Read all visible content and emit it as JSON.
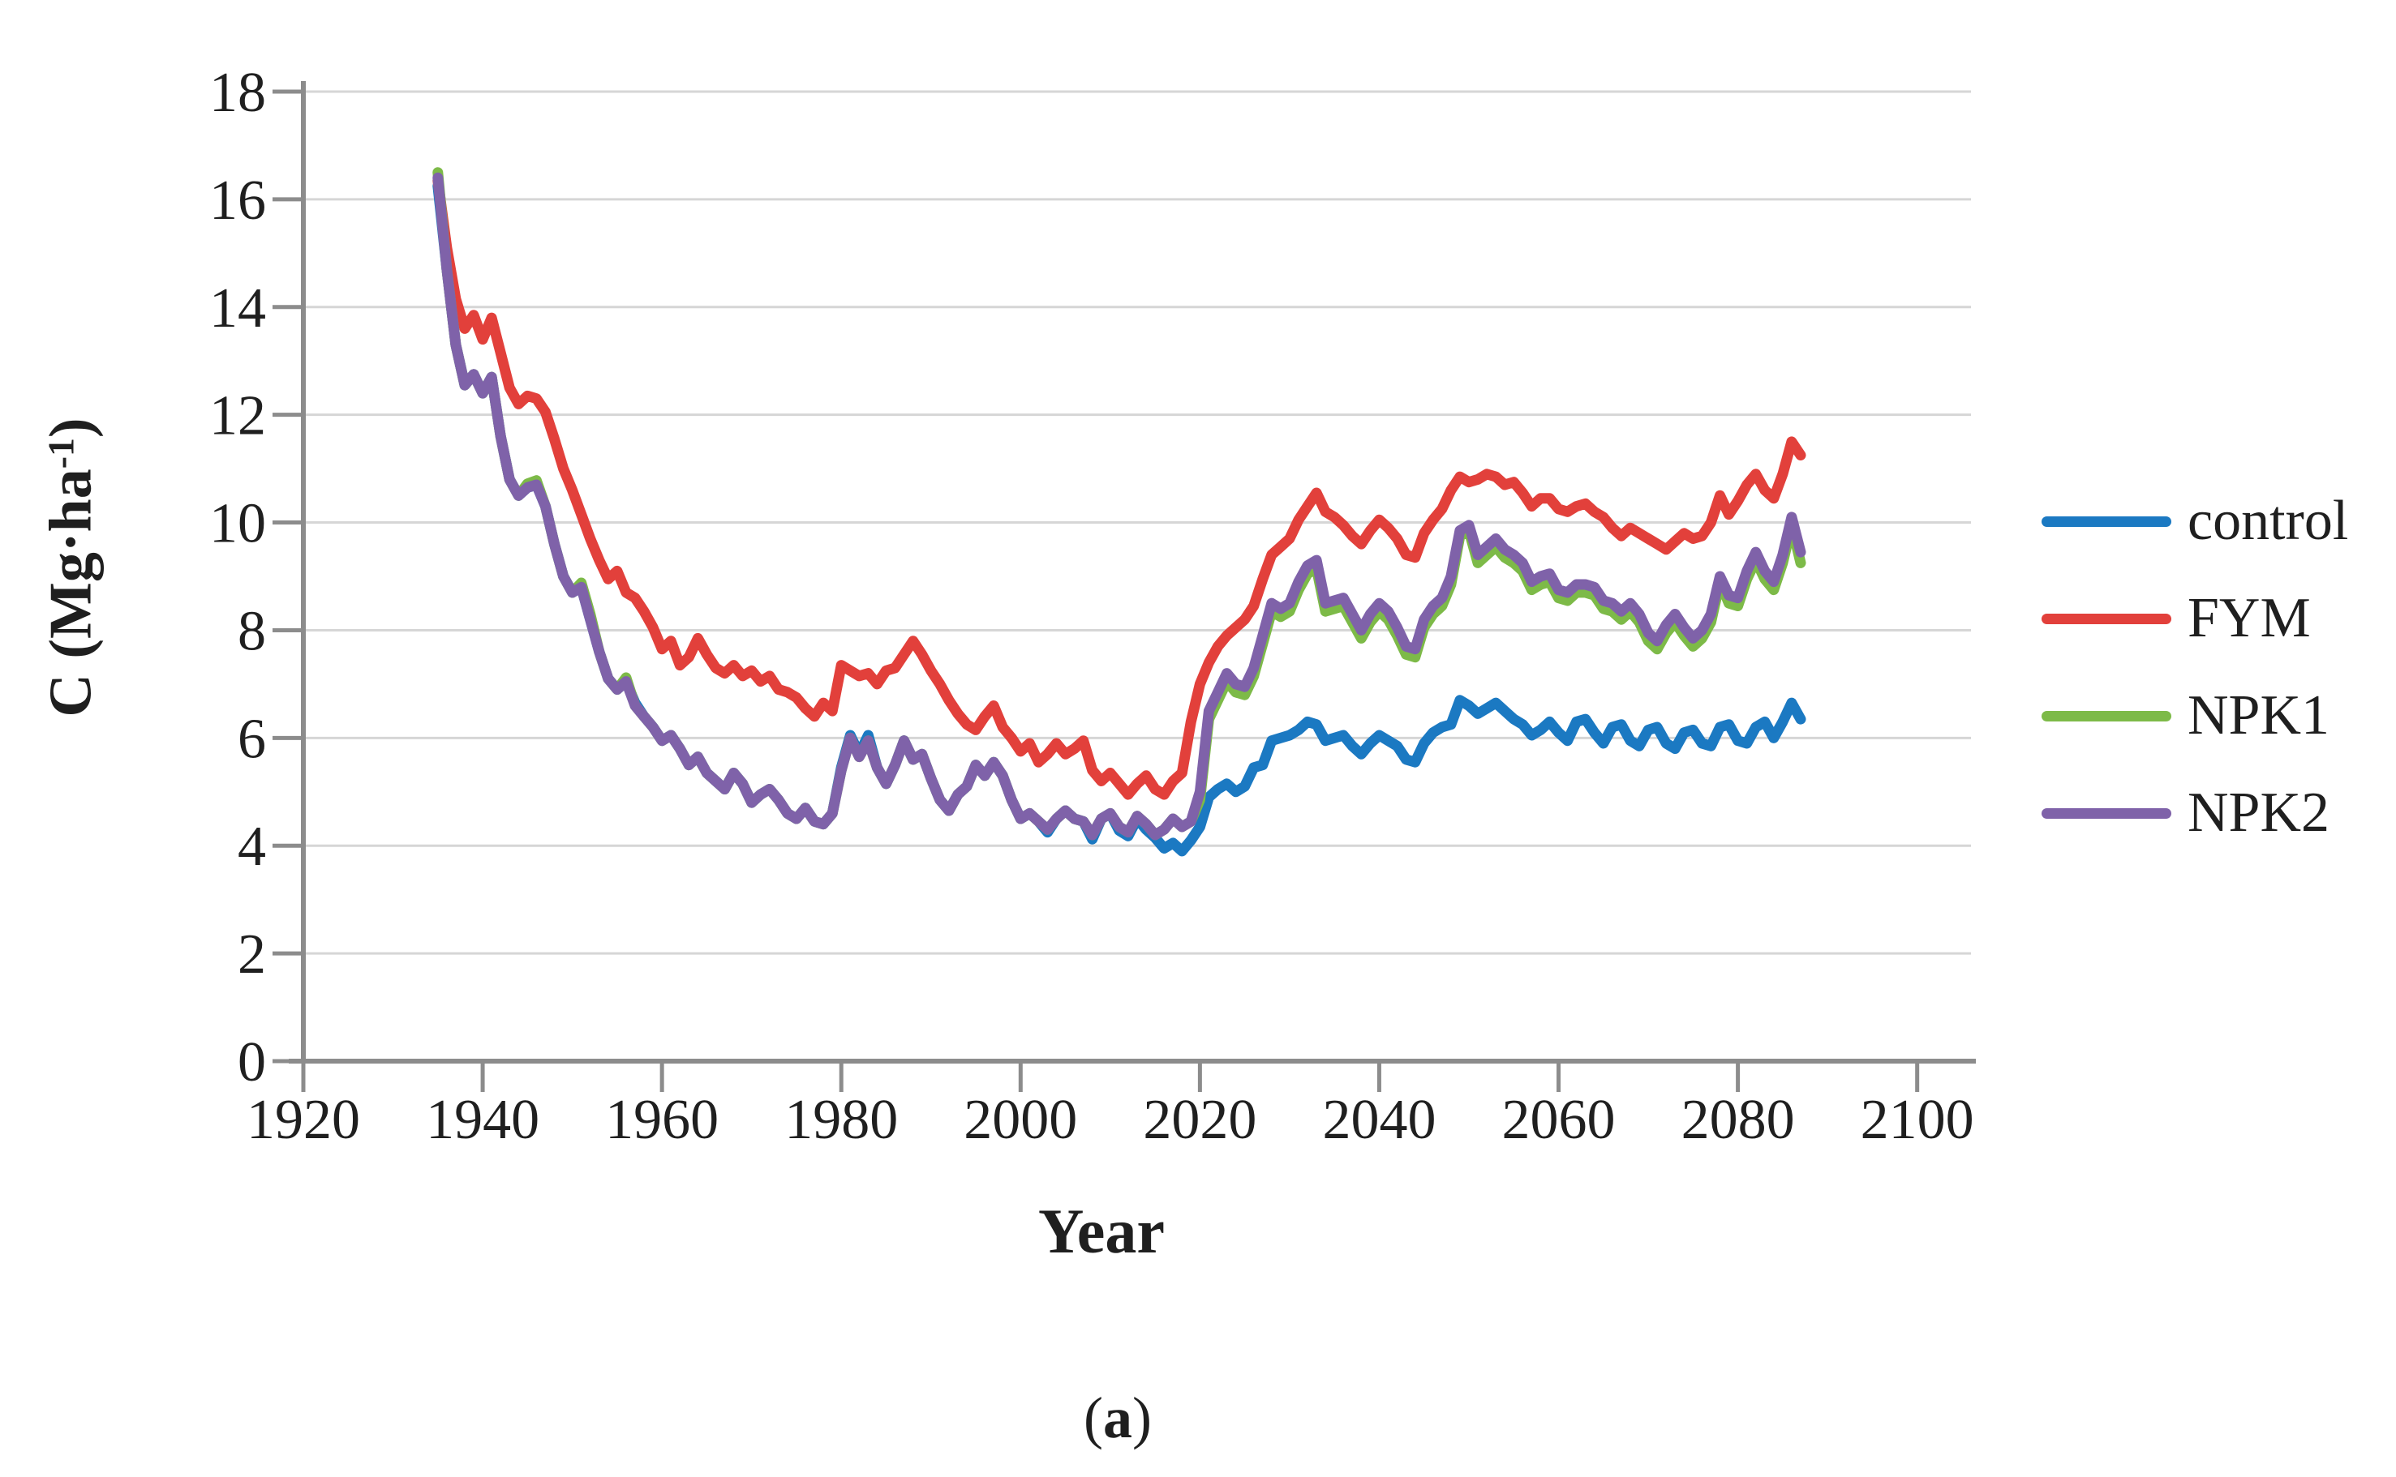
{
  "figure": {
    "background": "#ffffff",
    "caption_prefix": "(",
    "caption_label": "a",
    "caption_suffix": ")",
    "ylabel_main": "C (Mg·ha",
    "ylabel_sup": "-1",
    "ylabel_close": ")"
  },
  "chart_data": {
    "type": "line",
    "title": "",
    "xlabel": "Year",
    "ylabel": "C (Mg·ha⁻¹)",
    "caption": "(a)",
    "xlim": [
      1920,
      2106
    ],
    "ylim": [
      0,
      18
    ],
    "x_ticks": [
      1920,
      1940,
      1960,
      1980,
      2000,
      2020,
      2040,
      2060,
      2080,
      2100
    ],
    "y_ticks": [
      0,
      2,
      4,
      6,
      8,
      10,
      12,
      14,
      16,
      18
    ],
    "grid": true,
    "legend_position": "right-outside",
    "start_year": 1935,
    "end_year": 2087,
    "colors": {
      "grid": "#d6d6d6",
      "axis": "#8c8c8c",
      "tick": "#8c8c8c",
      "text": "#1f1f1f"
    },
    "draw_order": [
      "control",
      "FYM",
      "NPK1",
      "NPK2"
    ],
    "series": [
      {
        "name": "control",
        "color": "#1b79c2",
        "values": [
          16.25,
          14.7,
          13.3,
          12.55,
          12.75,
          12.4,
          12.7,
          11.6,
          10.8,
          10.5,
          10.65,
          10.7,
          10.3,
          9.6,
          9.0,
          8.7,
          8.8,
          8.2,
          7.6,
          7.1,
          6.9,
          7.05,
          6.65,
          6.4,
          6.2,
          5.95,
          6.05,
          5.8,
          5.5,
          5.65,
          5.35,
          5.2,
          5.05,
          5.35,
          5.15,
          4.8,
          4.95,
          5.05,
          4.85,
          4.6,
          4.5,
          4.7,
          4.45,
          4.4,
          4.6,
          5.45,
          6.05,
          5.7,
          6.05,
          5.45,
          5.15,
          5.5,
          5.95,
          5.6,
          5.7,
          5.25,
          4.85,
          4.65,
          4.95,
          5.1,
          5.5,
          5.3,
          5.55,
          5.3,
          4.85,
          4.5,
          4.6,
          4.45,
          4.25,
          4.5,
          4.65,
          4.5,
          4.45,
          4.12,
          4.5,
          4.6,
          4.28,
          4.18,
          4.5,
          4.3,
          4.15,
          3.95,
          4.05,
          3.9,
          4.1,
          4.35,
          4.9,
          5.05,
          5.15,
          5.0,
          5.1,
          5.45,
          5.5,
          5.95,
          6.0,
          6.05,
          6.15,
          6.3,
          6.25,
          5.95,
          6.0,
          6.05,
          5.85,
          5.7,
          5.9,
          6.05,
          5.95,
          5.85,
          5.6,
          5.55,
          5.9,
          6.1,
          6.2,
          6.25,
          6.7,
          6.6,
          6.45,
          6.55,
          6.65,
          6.5,
          6.35,
          6.25,
          6.05,
          6.15,
          6.3,
          6.1,
          5.95,
          6.3,
          6.35,
          6.1,
          5.9,
          6.2,
          6.25,
          5.95,
          5.85,
          6.15,
          6.2,
          5.9,
          5.8,
          6.1,
          6.15,
          5.9,
          5.85,
          6.2,
          6.25,
          5.95,
          5.9,
          6.2,
          6.3,
          6.0,
          6.3,
          6.65,
          6.35
        ]
      },
      {
        "name": "FYM",
        "color": "#e2403b",
        "values": [
          16.35,
          15.1,
          14.15,
          13.6,
          13.85,
          13.4,
          13.8,
          13.15,
          12.5,
          12.2,
          12.35,
          12.3,
          12.05,
          11.55,
          11.0,
          10.6,
          10.15,
          9.7,
          9.3,
          8.95,
          9.1,
          8.7,
          8.6,
          8.35,
          8.05,
          7.65,
          7.8,
          7.35,
          7.5,
          7.85,
          7.55,
          7.3,
          7.2,
          7.35,
          7.15,
          7.25,
          7.05,
          7.15,
          6.9,
          6.85,
          6.75,
          6.55,
          6.4,
          6.65,
          6.5,
          7.35,
          7.25,
          7.15,
          7.2,
          7.0,
          7.25,
          7.3,
          7.55,
          7.8,
          7.55,
          7.25,
          7.0,
          6.7,
          6.45,
          6.25,
          6.15,
          6.4,
          6.6,
          6.2,
          6.0,
          5.75,
          5.9,
          5.55,
          5.7,
          5.9,
          5.7,
          5.8,
          5.95,
          5.4,
          5.2,
          5.35,
          5.15,
          4.95,
          5.15,
          5.3,
          5.05,
          4.95,
          5.2,
          5.35,
          6.3,
          7.0,
          7.4,
          7.7,
          7.9,
          8.05,
          8.2,
          8.45,
          8.95,
          9.4,
          9.55,
          9.7,
          10.05,
          10.3,
          10.55,
          10.2,
          10.1,
          9.95,
          9.75,
          9.6,
          9.85,
          10.05,
          9.9,
          9.7,
          9.4,
          9.35,
          9.8,
          10.05,
          10.25,
          10.6,
          10.85,
          10.75,
          10.8,
          10.9,
          10.85,
          10.7,
          10.75,
          10.55,
          10.3,
          10.45,
          10.45,
          10.25,
          10.2,
          10.3,
          10.35,
          10.2,
          10.1,
          9.9,
          9.75,
          9.9,
          9.8,
          9.7,
          9.6,
          9.5,
          9.65,
          9.8,
          9.7,
          9.75,
          10.0,
          10.5,
          10.15,
          10.4,
          10.7,
          10.9,
          10.6,
          10.45,
          10.9,
          11.5,
          11.25
        ]
      },
      {
        "name": "NPK1",
        "color": "#7dba48",
        "values": [
          16.5,
          14.7,
          13.3,
          12.55,
          12.75,
          12.4,
          12.7,
          11.6,
          10.8,
          10.5,
          10.72,
          10.78,
          10.3,
          9.6,
          9.0,
          8.7,
          8.88,
          8.3,
          7.6,
          7.1,
          6.9,
          7.12,
          6.6,
          6.4,
          6.2,
          5.95,
          6.05,
          5.8,
          5.5,
          5.65,
          5.35,
          5.2,
          5.05,
          5.35,
          5.15,
          4.8,
          4.95,
          5.05,
          4.85,
          4.6,
          4.5,
          4.7,
          4.45,
          4.4,
          4.6,
          5.4,
          6.0,
          5.65,
          5.95,
          5.45,
          5.15,
          5.5,
          5.95,
          5.6,
          5.7,
          5.25,
          4.85,
          4.65,
          4.95,
          5.1,
          5.5,
          5.3,
          5.55,
          5.3,
          4.85,
          4.5,
          4.6,
          4.45,
          4.3,
          4.5,
          4.65,
          4.5,
          4.45,
          4.2,
          4.5,
          4.6,
          4.35,
          4.25,
          4.55,
          4.4,
          4.2,
          4.3,
          4.5,
          4.35,
          4.45,
          4.85,
          6.35,
          6.7,
          7.05,
          6.85,
          6.8,
          7.15,
          7.75,
          8.35,
          8.25,
          8.35,
          8.75,
          9.05,
          9.15,
          8.35,
          8.4,
          8.45,
          8.15,
          7.85,
          8.15,
          8.35,
          8.2,
          7.9,
          7.55,
          7.5,
          8.05,
          8.3,
          8.45,
          8.85,
          9.75,
          9.85,
          9.25,
          9.4,
          9.55,
          9.35,
          9.25,
          9.1,
          8.75,
          8.85,
          8.9,
          8.6,
          8.55,
          8.7,
          8.7,
          8.65,
          8.4,
          8.35,
          8.2,
          8.35,
          8.15,
          7.8,
          7.65,
          7.95,
          8.15,
          7.9,
          7.7,
          7.85,
          8.15,
          8.9,
          8.5,
          8.45,
          8.95,
          9.3,
          8.95,
          8.75,
          9.25,
          9.95,
          9.25
        ]
      },
      {
        "name": "NPK2",
        "color": "#7f62a9",
        "values": [
          16.4,
          14.7,
          13.3,
          12.55,
          12.75,
          12.4,
          12.7,
          11.6,
          10.8,
          10.5,
          10.65,
          10.7,
          10.3,
          9.6,
          9.0,
          8.7,
          8.8,
          8.2,
          7.6,
          7.1,
          6.9,
          7.05,
          6.6,
          6.4,
          6.2,
          5.95,
          6.05,
          5.8,
          5.5,
          5.65,
          5.35,
          5.2,
          5.05,
          5.35,
          5.15,
          4.8,
          4.95,
          5.05,
          4.85,
          4.6,
          4.5,
          4.7,
          4.45,
          4.4,
          4.6,
          5.4,
          6.0,
          5.65,
          5.95,
          5.45,
          5.15,
          5.5,
          5.95,
          5.6,
          5.7,
          5.25,
          4.85,
          4.65,
          4.95,
          5.1,
          5.5,
          5.3,
          5.55,
          5.3,
          4.85,
          4.5,
          4.6,
          4.45,
          4.3,
          4.5,
          4.65,
          4.5,
          4.45,
          4.2,
          4.5,
          4.6,
          4.35,
          4.25,
          4.55,
          4.4,
          4.2,
          4.3,
          4.5,
          4.35,
          4.45,
          5.0,
          6.5,
          6.85,
          7.2,
          7.0,
          6.95,
          7.3,
          7.9,
          8.5,
          8.4,
          8.5,
          8.9,
          9.2,
          9.3,
          8.5,
          8.55,
          8.6,
          8.3,
          8.0,
          8.3,
          8.5,
          8.35,
          8.05,
          7.7,
          7.65,
          8.2,
          8.45,
          8.6,
          9.0,
          9.85,
          9.95,
          9.4,
          9.55,
          9.7,
          9.5,
          9.4,
          9.25,
          8.9,
          9.0,
          9.05,
          8.75,
          8.7,
          8.85,
          8.85,
          8.8,
          8.55,
          8.5,
          8.35,
          8.5,
          8.3,
          7.95,
          7.8,
          8.1,
          8.3,
          8.05,
          7.85,
          8.0,
          8.3,
          9.0,
          8.65,
          8.6,
          9.1,
          9.45,
          9.1,
          8.9,
          9.4,
          10.1,
          9.45
        ]
      }
    ]
  }
}
